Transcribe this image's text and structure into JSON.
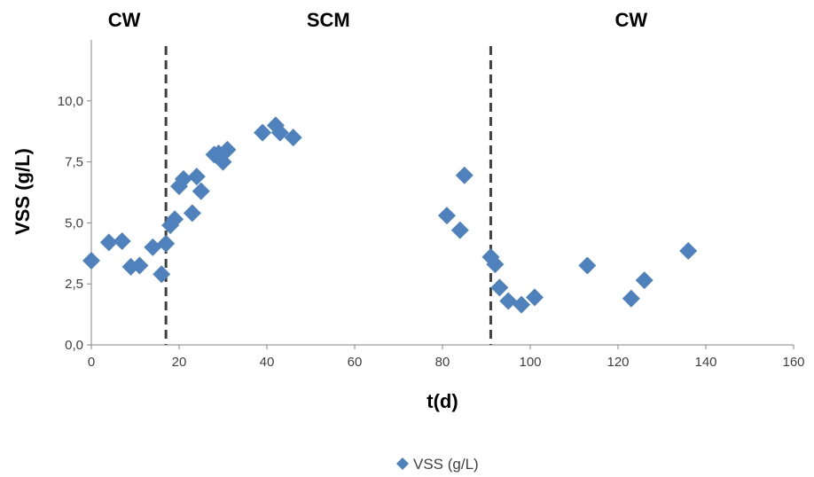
{
  "chart_data": {
    "type": "scatter",
    "xlabel": "t(d)",
    "ylabel": "VSS (g/L)",
    "xlim": [
      0,
      160
    ],
    "ylim": [
      0,
      12.5
    ],
    "xticks": [
      0,
      20,
      40,
      60,
      80,
      100,
      120,
      140,
      160
    ],
    "xtick_labels": [
      "0",
      "20",
      "40",
      "60",
      "80",
      "100",
      "120",
      "140",
      "160"
    ],
    "yticks": [
      0,
      2.5,
      5,
      7.5,
      10
    ],
    "ytick_labels": [
      "0,0",
      "2,5",
      "5,0",
      "7,5",
      "10,0"
    ],
    "grid": false,
    "legend": "bottom",
    "series": [
      {
        "name": "VSS (g/L)",
        "color": "#4F81BD",
        "marker": "diamond",
        "x": [
          0,
          4,
          7,
          9,
          11,
          14,
          16,
          17,
          18,
          19,
          20,
          21,
          23,
          24,
          25,
          28,
          29,
          30,
          31,
          39,
          42,
          43,
          46,
          81,
          84,
          85,
          91,
          92,
          93,
          95,
          98,
          101,
          113,
          123,
          126,
          136
        ],
        "y": [
          3.45,
          4.2,
          4.25,
          3.2,
          3.25,
          4.0,
          2.9,
          4.15,
          4.9,
          5.15,
          6.5,
          6.8,
          5.4,
          6.9,
          6.3,
          7.8,
          7.85,
          7.5,
          8.0,
          8.7,
          9.0,
          8.7,
          8.5,
          5.3,
          4.7,
          6.95,
          3.6,
          3.3,
          2.35,
          1.8,
          1.65,
          1.95,
          3.25,
          1.9,
          2.65,
          3.85
        ]
      }
    ],
    "vlines": [
      17,
      91
    ],
    "annotations": [
      {
        "text": "CW",
        "x": 7.5
      },
      {
        "text": "SCM",
        "x": 54
      },
      {
        "text": "CW",
        "x": 123
      }
    ]
  }
}
